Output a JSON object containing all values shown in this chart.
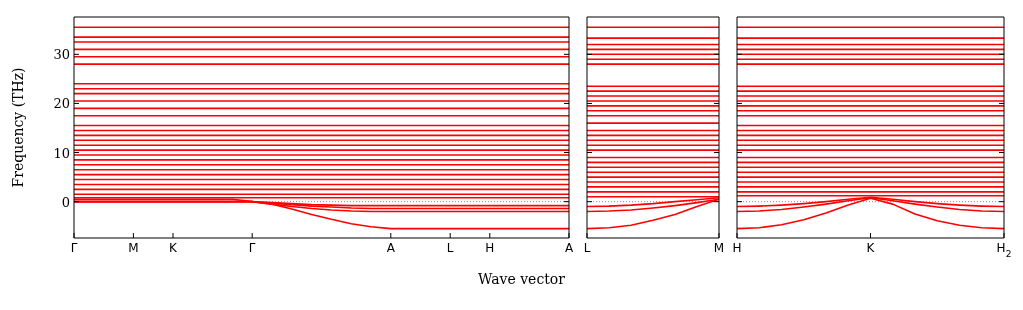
{
  "chart_data": [
    {
      "type": "line",
      "ylabel": "Frequency (THz)",
      "xlabel": "Wave vector",
      "marker": "none",
      "line_style": "solid",
      "grid": false,
      "categories": [
        "Γ",
        null,
        null,
        "M",
        null,
        "K",
        null,
        null,
        null,
        "Γ",
        null,
        null,
        null,
        null,
        null,
        null,
        "A",
        null,
        null,
        "L",
        null,
        "H",
        null,
        null,
        null,
        "A"
      ],
      "ylim": [
        -7.4,
        37.6
      ],
      "yticks": [
        0,
        10,
        20,
        30
      ],
      "ref_lines": [
        {
          "axis": "y",
          "value": 0,
          "color": "#8080ff",
          "line_style": "dotted"
        }
      ],
      "series": [
        {
          "color": "#ff0000",
          "values": [
            0,
            0,
            0,
            0,
            0,
            0,
            0,
            0,
            0,
            0,
            -0.5,
            -1.5,
            -2.6,
            -3.6,
            -4.5,
            -5.1,
            -5.5,
            -5.5,
            -5.5,
            -5.5,
            -5.5,
            -5.5,
            -5.5,
            -5.5,
            -5.5,
            -5.5
          ]
        },
        {
          "color": "#ff0000",
          "values": [
            0,
            0,
            0,
            0,
            0,
            0,
            0,
            0,
            0,
            0,
            -0.5,
            -1,
            -1.4,
            -1.7,
            -1.9,
            -2,
            -2,
            -2,
            -2,
            -2,
            -2,
            -2,
            -2,
            -2,
            -2,
            -2
          ]
        },
        {
          "color": "#ff0000",
          "values": [
            0,
            0,
            0,
            0,
            0,
            0,
            0,
            0,
            0,
            0,
            -0.3,
            -0.6,
            -0.9,
            -1.1,
            -1.3,
            -1.4,
            -1.4,
            -1.4,
            -1.4,
            -1.4,
            -1.4,
            -1.4,
            -1.4,
            -1.4,
            -1.4,
            -1.4
          ]
        },
        {
          "color": "#ff0000",
          "values": [
            0.5,
            0.5,
            0.5,
            0.5,
            0.5,
            0.5,
            0.5,
            0.5,
            0.5,
            0,
            -0.2,
            -0.4,
            -0.6,
            -0.7,
            -0.8,
            -0.8,
            -0.8,
            -0.8,
            -0.8,
            -0.8,
            -0.8,
            -0.8,
            -0.8,
            -0.8,
            -0.8,
            -0.8
          ]
        },
        {
          "color": "#ff0000",
          "values": [
            0.8,
            0.8,
            0.8,
            0.8,
            0.8,
            0.8,
            0.8,
            0.8,
            0.8,
            0.8,
            0.8,
            0.8,
            0.8,
            0.8,
            0.8,
            0.8,
            0.8,
            0.8,
            0.8,
            0.8,
            0.8,
            0.8,
            0.8,
            0.8,
            0.8,
            0.8
          ]
        },
        {
          "color": "#ff0000",
          "values": [
            1.5,
            1.5,
            1.5,
            1.5,
            1.5,
            1.5,
            1.5,
            1.5,
            1.5,
            1.5,
            1.5,
            1.5,
            1.5,
            1.5,
            1.5,
            1.5,
            1.5,
            1.5,
            1.5,
            1.5,
            1.5,
            1.5,
            1.5,
            1.5,
            1.5,
            1.5
          ]
        },
        {
          "color": "#ff0000",
          "values": [
            2.5,
            2.5,
            2.5,
            2.5,
            2.5,
            2.5,
            2.5,
            2.5,
            2.5,
            2.5,
            2.5,
            2.5,
            2.5,
            2.5,
            2.5,
            2.5,
            2.5,
            2.5,
            2.5,
            2.5,
            2.5,
            2.5,
            2.5,
            2.5,
            2.5,
            2.5
          ]
        },
        {
          "color": "#ff0000",
          "values": [
            3.5,
            3.5,
            3.5,
            3.5,
            3.5,
            3.5,
            3.5,
            3.5,
            3.5,
            3.5,
            3.5,
            3.5,
            3.5,
            3.5,
            3.5,
            3.5,
            3.5,
            3.5,
            3.5,
            3.5,
            3.5,
            3.5,
            3.5,
            3.5,
            3.5,
            3.5
          ]
        },
        {
          "color": "#ff0000",
          "values": [
            4.5,
            4.5,
            4.5,
            4.5,
            4.5,
            4.5,
            4.5,
            4.5,
            4.5,
            4.5,
            4.5,
            4.5,
            4.5,
            4.5,
            4.5,
            4.5,
            4.5,
            4.5,
            4.5,
            4.5,
            4.5,
            4.5,
            4.5,
            4.5,
            4.5,
            4.5
          ]
        },
        {
          "color": "#ff0000",
          "values": [
            5.5,
            5.5,
            5.5,
            5.5,
            5.5,
            5.5,
            5.5,
            5.5,
            5.5,
            5.5,
            5.5,
            5.5,
            5.5,
            5.5,
            5.5,
            5.5,
            5.5,
            5.5,
            5.5,
            5.5,
            5.5,
            5.5,
            5.5,
            5.5,
            5.5,
            5.5
          ]
        },
        {
          "color": "#ff0000",
          "values": [
            6.5,
            6.5,
            6.5,
            6.5,
            6.5,
            6.5,
            6.5,
            6.5,
            6.5,
            6.5,
            6.5,
            6.5,
            6.5,
            6.5,
            6.5,
            6.5,
            6.5,
            6.5,
            6.5,
            6.5,
            6.5,
            6.5,
            6.5,
            6.5,
            6.5,
            6.5
          ]
        },
        {
          "color": "#ff0000",
          "values": [
            7.5,
            7.5,
            7.5,
            7.5,
            7.5,
            7.5,
            7.5,
            7.5,
            7.5,
            7.5,
            7.5,
            7.5,
            7.5,
            7.5,
            7.5,
            7.5,
            7.5,
            7.5,
            7.5,
            7.5,
            7.5,
            7.5,
            7.5,
            7.5,
            7.5,
            7.5
          ]
        },
        {
          "color": "#ff0000",
          "values": [
            8.5,
            8.5,
            8.5,
            8.5,
            8.5,
            8.5,
            8.5,
            8.5,
            8.5,
            8.5,
            8.5,
            8.5,
            8.5,
            8.5,
            8.5,
            8.5,
            8.5,
            8.5,
            8.5,
            8.5,
            8.5,
            8.5,
            8.5,
            8.5,
            8.5,
            8.5
          ]
        },
        {
          "color": "#ff0000",
          "values": [
            9.5,
            9.5,
            9.5,
            9.5,
            9.5,
            9.5,
            9.5,
            9.5,
            9.5,
            9.5,
            9.5,
            9.5,
            9.5,
            9.5,
            9.5,
            9.5,
            9.5,
            9.5,
            9.5,
            9.5,
            9.5,
            9.5,
            9.5,
            9.5,
            9.5,
            9.5
          ]
        },
        {
          "color": "#ff0000",
          "values": [
            10.5,
            10.5,
            10.5,
            10.5,
            10.5,
            10.5,
            10.5,
            10.5,
            10.5,
            10.5,
            10.5,
            10.5,
            10.5,
            10.5,
            10.5,
            10.5,
            10.5,
            10.5,
            10.5,
            10.5,
            10.5,
            10.5,
            10.5,
            10.5,
            10.5,
            10.5
          ]
        },
        {
          "color": "#ff0000",
          "values": [
            11.5,
            11.5,
            11.5,
            11.5,
            11.5,
            11.5,
            11.5,
            11.5,
            11.5,
            11.5,
            11.5,
            11.5,
            11.5,
            11.5,
            11.5,
            11.5,
            11.5,
            11.5,
            11.5,
            11.5,
            11.5,
            11.5,
            11.5,
            11.5,
            11.5,
            11.5
          ]
        },
        {
          "color": "#ff0000",
          "values": [
            12.5,
            12.5,
            12.5,
            12.5,
            12.5,
            12.5,
            12.5,
            12.5,
            12.5,
            12.5,
            12.5,
            12.5,
            12.5,
            12.5,
            12.5,
            12.5,
            12.5,
            12.5,
            12.5,
            12.5,
            12.5,
            12.5,
            12.5,
            12.5,
            12.5,
            12.5
          ]
        },
        {
          "color": "#ff0000",
          "values": [
            13.5,
            13.5,
            13.5,
            13.5,
            13.5,
            13.5,
            13.5,
            13.5,
            13.5,
            13.5,
            13.5,
            13.5,
            13.5,
            13.5,
            13.5,
            13.5,
            13.5,
            13.5,
            13.5,
            13.5,
            13.5,
            13.5,
            13.5,
            13.5,
            13.5,
            13.5
          ]
        },
        {
          "color": "#ff0000",
          "values": [
            14.5,
            14.5,
            14.5,
            14.5,
            14.5,
            14.5,
            14.5,
            14.5,
            14.5,
            14.5,
            14.5,
            14.5,
            14.5,
            14.5,
            14.5,
            14.5,
            14.5,
            14.5,
            14.5,
            14.5,
            14.5,
            14.5,
            14.5,
            14.5,
            14.5,
            14.5
          ]
        },
        {
          "color": "#ff0000",
          "values": [
            15.5,
            15.5,
            15.5,
            15.5,
            15.5,
            15.5,
            15.5,
            15.5,
            15.5,
            15.5,
            15.5,
            15.5,
            15.5,
            15.5,
            15.5,
            15.5,
            15.5,
            15.5,
            15.5,
            15.5,
            15.5,
            15.5,
            15.5,
            15.5,
            15.5,
            15.5
          ]
        },
        {
          "color": "#ff0000",
          "values": [
            17.5,
            17.5,
            17.5,
            17.5,
            17.5,
            17.5,
            17.5,
            17.5,
            17.5,
            17.5,
            17.5,
            17.5,
            17.5,
            17.5,
            17.5,
            17.5,
            17.5,
            17.5,
            17.5,
            17.5,
            17.5,
            17.5,
            17.5,
            17.5,
            17.5,
            17.5
          ]
        },
        {
          "color": "#ff0000",
          "values": [
            19,
            19,
            19,
            19,
            19,
            19,
            19,
            19,
            19,
            19,
            19,
            19,
            19,
            19,
            19,
            19,
            19,
            19,
            19,
            19,
            19,
            19,
            19,
            19,
            19,
            19
          ]
        },
        {
          "color": "#ff0000",
          "values": [
            20.5,
            20.5,
            20.5,
            20.5,
            20.5,
            20.5,
            20.5,
            20.5,
            20.5,
            20.5,
            20.5,
            20.5,
            20.5,
            20.5,
            20.5,
            20.5,
            20.5,
            20.5,
            20.5,
            20.5,
            20.5,
            20.5,
            20.5,
            20.5,
            20.5,
            20.5
          ]
        },
        {
          "color": "#ff0000",
          "values": [
            22,
            22,
            22,
            22,
            22,
            22,
            22,
            22,
            22,
            22,
            22,
            22,
            22,
            22,
            22,
            22,
            22,
            22,
            22,
            22,
            22,
            22,
            22,
            22,
            22,
            22
          ]
        },
        {
          "color": "#ff0000",
          "values": [
            23,
            23,
            23,
            23,
            23,
            23,
            23,
            23,
            23,
            23,
            23,
            23,
            23,
            23,
            23,
            23,
            23,
            23,
            23,
            23,
            23,
            23,
            23,
            23,
            23,
            23
          ]
        },
        {
          "color": "#ff0000",
          "values": [
            24,
            24,
            24,
            24,
            24,
            24,
            24,
            24,
            24,
            24,
            24,
            24,
            24,
            24,
            24,
            24,
            24,
            24,
            24,
            24,
            24,
            24,
            24,
            24,
            24,
            24
          ]
        },
        {
          "color": "#ff0000",
          "values": [
            28,
            28,
            28,
            28,
            28,
            28,
            28,
            28,
            28,
            28,
            28,
            28,
            28,
            28,
            28,
            28,
            28,
            28,
            28,
            28,
            28,
            28,
            28,
            28,
            28,
            28
          ]
        },
        {
          "color": "#ff0000",
          "values": [
            29.5,
            29.5,
            29.5,
            29.5,
            29.5,
            29.5,
            29.5,
            29.5,
            29.5,
            29.5,
            29.5,
            29.5,
            29.5,
            29.5,
            29.5,
            29.5,
            29.5,
            29.5,
            29.5,
            29.5,
            29.5,
            29.5,
            29.5,
            29.5,
            29.5,
            29.5
          ]
        },
        {
          "color": "#ff0000",
          "values": [
            31,
            31,
            31,
            31,
            31,
            31,
            31,
            31,
            31,
            31,
            31,
            31,
            31,
            31,
            31,
            31,
            31,
            31,
            31,
            31,
            31,
            31,
            31,
            31,
            31,
            31
          ]
        },
        {
          "color": "#ff0000",
          "values": [
            32.5,
            32.5,
            32.5,
            32.5,
            32.5,
            32.5,
            32.5,
            32.5,
            32.5,
            32.5,
            32.5,
            32.5,
            32.5,
            32.5,
            32.5,
            32.5,
            32.5,
            32.5,
            32.5,
            32.5,
            32.5,
            32.5,
            32.5,
            32.5,
            32.5,
            32.5
          ]
        },
        {
          "color": "#ff0000",
          "values": [
            33.5,
            33.5,
            33.5,
            33.5,
            33.5,
            33.5,
            33.5,
            33.5,
            33.5,
            33.5,
            33.5,
            33.5,
            33.5,
            33.5,
            33.5,
            33.5,
            33.5,
            33.5,
            33.5,
            33.5,
            33.5,
            33.5,
            33.5,
            33.5,
            33.5,
            33.5
          ]
        },
        {
          "color": "#ff0000",
          "values": [
            35.5,
            35.5,
            35.5,
            35.5,
            35.5,
            35.5,
            35.5,
            35.5,
            35.5,
            35.5,
            35.5,
            35.5,
            35.5,
            35.5,
            35.5,
            35.5,
            35.5,
            35.5,
            35.5,
            35.5,
            35.5,
            35.5,
            35.5,
            35.5,
            35.5,
            35.5
          ]
        }
      ]
    },
    {
      "type": "line",
      "marker": "none",
      "line_style": "solid",
      "grid": false,
      "tick_labels": "x",
      "categories": [
        "L",
        null,
        null,
        null,
        null,
        null,
        "M"
      ],
      "ylim": [
        -7.4,
        37.6
      ],
      "yticks": [
        {
          "value": 0,
          "label": null
        },
        {
          "value": 10,
          "label": null
        },
        {
          "value": 20,
          "label": null
        },
        {
          "value": 30,
          "label": null
        }
      ],
      "ref_lines": [
        {
          "axis": "y",
          "value": 0,
          "color": "#8080ff",
          "line_style": "dotted"
        }
      ],
      "series": [
        {
          "color": "#ff0000",
          "values": [
            -5.5,
            -5.3,
            -4.8,
            -3.8,
            -2.6,
            -1,
            0.5
          ]
        },
        {
          "color": "#ff0000",
          "values": [
            -2,
            -1.9,
            -1.7,
            -1.3,
            -0.8,
            -0.2,
            0.5
          ]
        },
        {
          "color": "#ff0000",
          "values": [
            -1,
            -0.9,
            -0.7,
            -0.4,
            0,
            0.4,
            0.8
          ]
        },
        {
          "color": "#ff0000",
          "values": [
            1,
            1,
            1,
            1,
            1,
            1,
            1
          ]
        },
        {
          "color": "#ff0000",
          "values": [
            2,
            2,
            2,
            2,
            2,
            2,
            2
          ]
        },
        {
          "color": "#ff0000",
          "values": [
            3,
            3,
            3,
            3,
            3,
            3,
            3
          ]
        },
        {
          "color": "#ff0000",
          "values": [
            4,
            4,
            4,
            4,
            4,
            4,
            4
          ]
        },
        {
          "color": "#ff0000",
          "values": [
            5,
            5,
            5,
            5,
            5,
            5,
            5
          ]
        },
        {
          "color": "#ff0000",
          "values": [
            6,
            6,
            6,
            6,
            6,
            6,
            6
          ]
        },
        {
          "color": "#ff0000",
          "values": [
            7,
            7,
            7,
            7,
            7,
            7,
            7
          ]
        },
        {
          "color": "#ff0000",
          "values": [
            8,
            8,
            8,
            8,
            8,
            8,
            8
          ]
        },
        {
          "color": "#ff0000",
          "values": [
            9,
            9,
            9,
            9,
            9,
            9,
            9
          ]
        },
        {
          "color": "#ff0000",
          "values": [
            10.5,
            10.5,
            10.5,
            10.5,
            10.5,
            10.5,
            10.5
          ]
        },
        {
          "color": "#ff0000",
          "values": [
            11.5,
            11.5,
            11.5,
            11.5,
            11.5,
            11.5,
            11.5
          ]
        },
        {
          "color": "#ff0000",
          "values": [
            12.5,
            12.5,
            12.5,
            12.5,
            12.5,
            12.5,
            12.5
          ]
        },
        {
          "color": "#ff0000",
          "values": [
            13.5,
            13.5,
            13.5,
            13.5,
            13.5,
            13.5,
            13.5
          ]
        },
        {
          "color": "#ff0000",
          "values": [
            14.5,
            14.5,
            14.5,
            14.5,
            14.5,
            14.5,
            14.5
          ]
        },
        {
          "color": "#ff0000",
          "values": [
            16,
            16,
            16,
            16,
            16,
            16,
            16
          ]
        },
        {
          "color": "#ff0000",
          "values": [
            17.5,
            17.5,
            17.5,
            17.5,
            17.5,
            17.5,
            17.5
          ]
        },
        {
          "color": "#ff0000",
          "values": [
            18.5,
            18.5,
            18.5,
            18.5,
            18.5,
            18.5,
            18.5
          ]
        },
        {
          "color": "#ff0000",
          "values": [
            19.5,
            19.5,
            19.5,
            19.5,
            19.5,
            19.5,
            19.5
          ]
        },
        {
          "color": "#ff0000",
          "values": [
            20.5,
            20.5,
            20.5,
            20.5,
            20.5,
            20.5,
            20.5
          ]
        },
        {
          "color": "#ff0000",
          "values": [
            21.5,
            21.5,
            21.5,
            21.5,
            21.5,
            21.5,
            21.5
          ]
        },
        {
          "color": "#ff0000",
          "values": [
            22.5,
            22.5,
            22.5,
            22.5,
            22.5,
            22.5,
            22.5
          ]
        },
        {
          "color": "#ff0000",
          "values": [
            23.5,
            23.5,
            23.5,
            23.5,
            23.5,
            23.5,
            23.5
          ]
        },
        {
          "color": "#ff0000",
          "values": [
            28,
            28,
            28,
            28,
            28,
            28,
            28
          ]
        },
        {
          "color": "#ff0000",
          "values": [
            29,
            29,
            29,
            29,
            29,
            29,
            29
          ]
        },
        {
          "color": "#ff0000",
          "values": [
            30,
            30,
            30,
            30,
            30,
            30,
            30
          ]
        },
        {
          "color": "#ff0000",
          "values": [
            31,
            31,
            31,
            31,
            31,
            31,
            31
          ]
        },
        {
          "color": "#ff0000",
          "values": [
            32,
            32,
            32,
            32,
            32,
            32,
            32
          ]
        },
        {
          "color": "#ff0000",
          "values": [
            33.3,
            33.3,
            33.3,
            33.3,
            33.3,
            33.3,
            33.3
          ]
        },
        {
          "color": "#ff0000",
          "values": [
            35.5,
            35.5,
            35.5,
            35.5,
            35.5,
            35.5,
            35.5
          ]
        }
      ]
    },
    {
      "type": "line",
      "marker": "none",
      "line_style": "solid",
      "grid": false,
      "tick_labels": "x",
      "categories": [
        "H",
        null,
        null,
        null,
        null,
        null,
        "K",
        null,
        null,
        null,
        null,
        null,
        "H$_{2}$"
      ],
      "ylim": [
        -7.4,
        37.6
      ],
      "yticks": [
        {
          "value": 0,
          "label": null
        },
        {
          "value": 10,
          "label": null
        },
        {
          "value": 20,
          "label": null
        },
        {
          "value": 30,
          "label": null
        }
      ],
      "ref_lines": [
        {
          "axis": "y",
          "value": 0,
          "color": "#8080ff",
          "line_style": "dotted"
        }
      ],
      "series": [
        {
          "color": "#ff0000",
          "values": [
            -5.5,
            -5.3,
            -4.7,
            -3.7,
            -2.3,
            -0.7,
            0.7,
            -0.5,
            -2.5,
            -3.9,
            -4.8,
            -5.3,
            -5.5
          ]
        },
        {
          "color": "#ff0000",
          "values": [
            -2,
            -1.9,
            -1.6,
            -1.1,
            -0.5,
            0.2,
            0.8,
            0.2,
            -0.5,
            -1.1,
            -1.6,
            -1.9,
            -2
          ]
        },
        {
          "color": "#ff0000",
          "values": [
            -1,
            -0.9,
            -0.7,
            -0.4,
            0,
            0.5,
            0.9,
            0.5,
            0,
            -0.4,
            -0.7,
            -0.9,
            -1
          ]
        },
        {
          "color": "#ff0000",
          "values": [
            1.2,
            1.2,
            1.2,
            1.2,
            1.2,
            1.2,
            1.2,
            1.2,
            1.2,
            1.2,
            1.2,
            1.2,
            1.2
          ]
        },
        {
          "color": "#ff0000",
          "values": [
            2,
            2,
            2,
            2,
            2,
            2,
            2,
            2,
            2,
            2,
            2,
            2,
            2
          ]
        },
        {
          "color": "#ff0000",
          "values": [
            3,
            3,
            3,
            3,
            3,
            3,
            3,
            3,
            3,
            3,
            3,
            3,
            3
          ]
        },
        {
          "color": "#ff0000",
          "values": [
            4,
            4,
            4,
            4,
            4,
            4,
            4,
            4,
            4,
            4,
            4,
            4,
            4
          ]
        },
        {
          "color": "#ff0000",
          "values": [
            5,
            5,
            5,
            5,
            5,
            5,
            5,
            5,
            5,
            5,
            5,
            5,
            5
          ]
        },
        {
          "color": "#ff0000",
          "values": [
            6,
            6,
            6,
            6,
            6,
            6,
            6,
            6,
            6,
            6,
            6,
            6,
            6
          ]
        },
        {
          "color": "#ff0000",
          "values": [
            7,
            7,
            7,
            7,
            7,
            7,
            7,
            7,
            7,
            7,
            7,
            7,
            7
          ]
        },
        {
          "color": "#ff0000",
          "values": [
            8,
            8,
            8,
            8,
            8,
            8,
            8,
            8,
            8,
            8,
            8,
            8,
            8
          ]
        },
        {
          "color": "#ff0000",
          "values": [
            9,
            9,
            9,
            9,
            9,
            9,
            9,
            9,
            9,
            9,
            9,
            9,
            9
          ]
        },
        {
          "color": "#ff0000",
          "values": [
            10.5,
            10.5,
            10.5,
            10.5,
            10.5,
            10.5,
            10.5,
            10.5,
            10.5,
            10.5,
            10.5,
            10.5,
            10.5
          ]
        },
        {
          "color": "#ff0000",
          "values": [
            11.5,
            11.5,
            11.5,
            11.5,
            11.5,
            11.5,
            11.5,
            11.5,
            11.5,
            11.5,
            11.5,
            11.5,
            11.5
          ]
        },
        {
          "color": "#ff0000",
          "values": [
            12.5,
            12.5,
            12.5,
            12.5,
            12.5,
            12.5,
            12.5,
            12.5,
            12.5,
            12.5,
            12.5,
            12.5,
            12.5
          ]
        },
        {
          "color": "#ff0000",
          "values": [
            13.5,
            13.5,
            13.5,
            13.5,
            13.5,
            13.5,
            13.5,
            13.5,
            13.5,
            13.5,
            13.5,
            13.5,
            13.5
          ]
        },
        {
          "color": "#ff0000",
          "values": [
            14.5,
            14.5,
            14.5,
            14.5,
            14.5,
            14.5,
            14.5,
            14.5,
            14.5,
            14.5,
            14.5,
            14.5,
            14.5
          ]
        },
        {
          "color": "#ff0000",
          "values": [
            15.5,
            15.5,
            15.5,
            15.5,
            15.5,
            15.5,
            15.5,
            15.5,
            15.5,
            15.5,
            15.5,
            15.5,
            15.5
          ]
        },
        {
          "color": "#ff0000",
          "values": [
            17.5,
            17.5,
            17.5,
            17.5,
            17.5,
            17.5,
            17.5,
            17.5,
            17.5,
            17.5,
            17.5,
            17.5,
            17.5
          ]
        },
        {
          "color": "#ff0000",
          "values": [
            18.5,
            18.5,
            18.5,
            18.5,
            18.5,
            18.5,
            18.5,
            18.5,
            18.5,
            18.5,
            18.5,
            18.5,
            18.5
          ]
        },
        {
          "color": "#ff0000",
          "values": [
            19.5,
            19.5,
            19.5,
            19.5,
            19.5,
            19.5,
            19.5,
            19.5,
            19.5,
            19.5,
            19.5,
            19.5,
            19.5
          ]
        },
        {
          "color": "#ff0000",
          "values": [
            20.5,
            20.5,
            20.5,
            20.5,
            20.5,
            20.5,
            20.5,
            20.5,
            20.5,
            20.5,
            20.5,
            20.5,
            20.5
          ]
        },
        {
          "color": "#ff0000",
          "values": [
            21.5,
            21.5,
            21.5,
            21.5,
            21.5,
            21.5,
            21.5,
            21.5,
            21.5,
            21.5,
            21.5,
            21.5,
            21.5
          ]
        },
        {
          "color": "#ff0000",
          "values": [
            22.5,
            22.5,
            22.5,
            22.5,
            22.5,
            22.5,
            22.5,
            22.5,
            22.5,
            22.5,
            22.5,
            22.5,
            22.5
          ]
        },
        {
          "color": "#ff0000",
          "values": [
            23.5,
            23.5,
            23.5,
            23.5,
            23.5,
            23.5,
            23.5,
            23.5,
            23.5,
            23.5,
            23.5,
            23.5,
            23.5
          ]
        },
        {
          "color": "#ff0000",
          "values": [
            28,
            28,
            28,
            28,
            28,
            28,
            28,
            28,
            28,
            28,
            28,
            28,
            28
          ]
        },
        {
          "color": "#ff0000",
          "values": [
            29,
            29,
            29,
            29,
            29,
            29,
            29,
            29,
            29,
            29,
            29,
            29,
            29
          ]
        },
        {
          "color": "#ff0000",
          "values": [
            30,
            30,
            30,
            30,
            30,
            30,
            30,
            30,
            30,
            30,
            30,
            30,
            30
          ]
        },
        {
          "color": "#ff0000",
          "values": [
            31,
            31,
            31,
            31,
            31,
            31,
            31,
            31,
            31,
            31,
            31,
            31,
            31
          ]
        },
        {
          "color": "#ff0000",
          "values": [
            32,
            32,
            32,
            32,
            32,
            32,
            32,
            32,
            32,
            32,
            32,
            32,
            32
          ]
        },
        {
          "color": "#ff0000",
          "values": [
            33.3,
            33.3,
            33.3,
            33.3,
            33.3,
            33.3,
            33.3,
            33.3,
            33.3,
            33.3,
            33.3,
            33.3,
            33.3
          ]
        },
        {
          "color": "#ff0000",
          "values": [
            35.5,
            35.5,
            35.5,
            35.5,
            35.5,
            35.5,
            35.5,
            35.5,
            35.5,
            35.5,
            35.5,
            35.5,
            35.5
          ]
        }
      ]
    }
  ]
}
